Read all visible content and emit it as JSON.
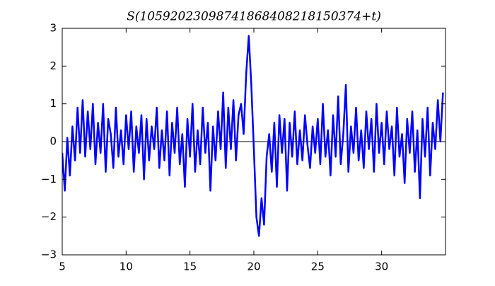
{
  "chart_data": {
    "type": "line",
    "title": "S(10592023098741868408218150374+t)",
    "x": [
      5.0,
      5.2,
      5.4,
      5.6,
      5.8,
      6.0,
      6.2,
      6.4,
      6.6,
      6.8,
      7.0,
      7.2,
      7.4,
      7.6,
      7.8,
      8.0,
      8.2,
      8.4,
      8.6,
      8.8,
      9.0,
      9.2,
      9.4,
      9.6,
      9.8,
      10.0,
      10.2,
      10.4,
      10.6,
      10.8,
      11.0,
      11.2,
      11.4,
      11.6,
      11.8,
      12.0,
      12.2,
      12.4,
      12.6,
      12.8,
      13.0,
      13.2,
      13.4,
      13.6,
      13.8,
      14.0,
      14.2,
      14.4,
      14.6,
      14.8,
      15.0,
      15.2,
      15.4,
      15.6,
      15.8,
      16.0,
      16.2,
      16.4,
      16.6,
      16.8,
      17.0,
      17.2,
      17.4,
      17.6,
      17.8,
      18.0,
      18.2,
      18.4,
      18.6,
      18.8,
      19.0,
      19.2,
      19.4,
      19.6,
      19.8,
      20.0,
      20.2,
      20.4,
      20.6,
      20.8,
      21.0,
      21.2,
      21.4,
      21.6,
      21.8,
      22.0,
      22.2,
      22.4,
      22.6,
      22.8,
      23.0,
      23.2,
      23.4,
      23.6,
      23.8,
      24.0,
      24.2,
      24.4,
      24.6,
      24.8,
      25.0,
      25.2,
      25.4,
      25.6,
      25.8,
      26.0,
      26.2,
      26.4,
      26.6,
      26.8,
      27.0,
      27.2,
      27.4,
      27.6,
      27.8,
      28.0,
      28.2,
      28.4,
      28.6,
      28.8,
      29.0,
      29.2,
      29.4,
      29.6,
      29.8,
      30.0,
      30.2,
      30.4,
      30.6,
      30.8,
      31.0,
      31.2,
      31.4,
      31.6,
      31.8,
      32.0,
      32.2,
      32.4,
      32.6,
      32.8,
      33.0,
      33.2,
      33.4,
      33.6,
      33.8,
      34.0,
      34.2,
      34.4,
      34.6,
      34.8
    ],
    "series": [
      {
        "color": "#0000ff",
        "values": [
          -0.3,
          -1.3,
          0.1,
          -0.9,
          0.4,
          -0.5,
          0.9,
          -0.3,
          1.1,
          -0.4,
          0.8,
          -0.2,
          1.0,
          -0.6,
          0.5,
          -0.3,
          1.0,
          -0.8,
          0.6,
          0.2,
          -0.7,
          0.9,
          -0.4,
          0.3,
          -0.6,
          0.7,
          -0.2,
          0.8,
          -0.8,
          0.4,
          -0.3,
          0.7,
          -1.0,
          0.6,
          -0.5,
          0.4,
          -0.2,
          0.9,
          -0.7,
          0.3,
          -0.5,
          0.8,
          -0.9,
          0.5,
          -0.3,
          0.9,
          -0.6,
          0.2,
          -1.2,
          0.6,
          -0.4,
          1.0,
          -0.8,
          0.3,
          -0.6,
          0.9,
          -0.3,
          0.5,
          -1.3,
          0.4,
          -0.5,
          0.8,
          -0.2,
          1.3,
          -0.7,
          0.9,
          -0.2,
          1.1,
          -0.5,
          0.7,
          1.0,
          0.2,
          1.8,
          2.8,
          1.5,
          -0.2,
          -2.0,
          -2.5,
          -1.5,
          -2.2,
          -0.4,
          0.2,
          -0.8,
          0.5,
          -1.2,
          0.7,
          -0.3,
          0.6,
          -1.3,
          0.5,
          -0.4,
          0.8,
          -0.6,
          0.3,
          -0.5,
          0.7,
          -0.1,
          -0.7,
          0.4,
          -0.3,
          0.6,
          -0.6,
          1.0,
          -0.4,
          0.3,
          -0.9,
          0.7,
          -0.4,
          1.2,
          -0.6,
          0.2,
          1.5,
          -0.8,
          0.4,
          -0.3,
          0.9,
          -0.5,
          0.3,
          -0.7,
          0.8,
          -0.2,
          0.6,
          -0.8,
          1.0,
          -0.3,
          0.5,
          -0.6,
          0.8,
          -0.2,
          0.4,
          -0.9,
          0.9,
          -0.4,
          0.2,
          -1.1,
          0.6,
          -0.3,
          0.8,
          -0.8,
          0.3,
          -1.5,
          0.6,
          -0.4,
          0.9,
          -0.9,
          0.5,
          -0.2,
          1.1,
          0.0,
          1.3
        ]
      }
    ],
    "reference_line": 0,
    "xlim": [
      5,
      35
    ],
    "xticks": [
      5,
      10,
      15,
      20,
      25,
      30
    ],
    "ylim": [
      -3,
      3
    ],
    "yticks": [
      {
        "value": -3,
        "label": "−3"
      },
      {
        "value": -2,
        "label": "−2"
      },
      {
        "value": -1,
        "label": "−1"
      },
      0,
      1,
      2,
      3
    ]
  }
}
